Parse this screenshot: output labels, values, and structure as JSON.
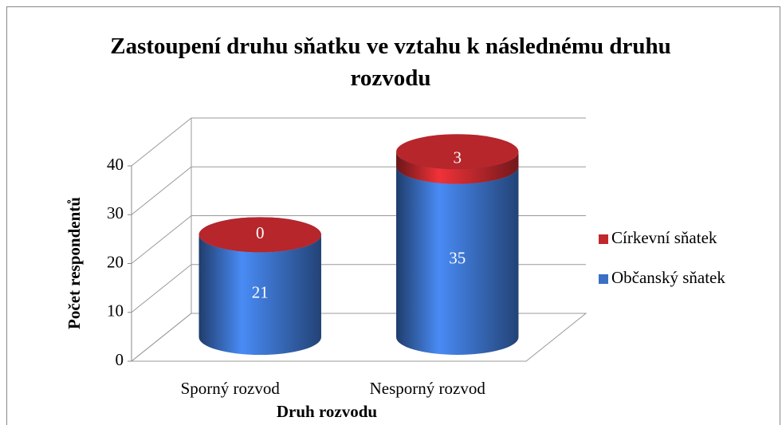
{
  "chart_data": {
    "type": "bar",
    "stacked": true,
    "three_d": true,
    "title": "Zastoupení druhu sňatku ve vztahu k následnému druhu rozvodu",
    "x_label": "Druh rozvodu",
    "y_label": "Počet respondentů",
    "categories": [
      "Sporný rozvod",
      "Nesporný rozvod"
    ],
    "series": [
      {
        "name": "Občanský sňatek",
        "color": "#3a6fc4",
        "values": [
          21,
          35
        ]
      },
      {
        "name": "Církevní sňatek",
        "color": "#c0282d",
        "values": [
          0,
          3
        ]
      }
    ],
    "ylim": [
      0,
      40
    ],
    "yticks": [
      0,
      10,
      20,
      30,
      40
    ],
    "grid": true,
    "legend": "right"
  }
}
